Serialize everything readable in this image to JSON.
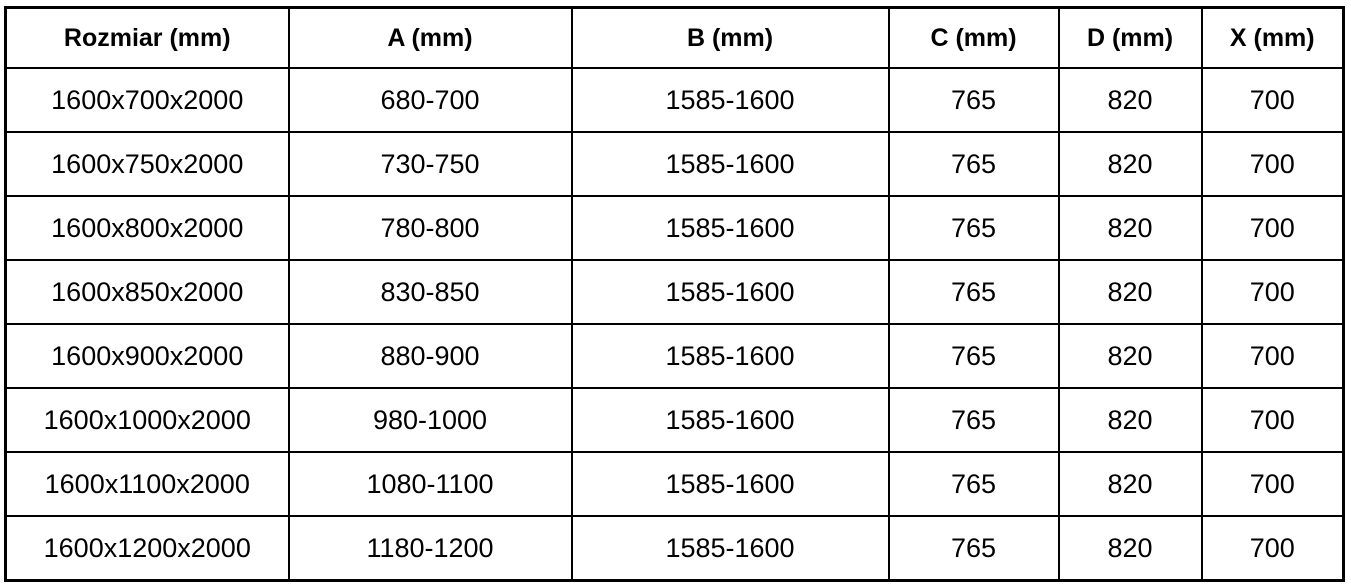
{
  "table": {
    "headers": [
      "Rozmiar (mm)",
      "A (mm)",
      "B (mm)",
      "C (mm)",
      "D (mm)",
      "X (mm)"
    ],
    "rows": [
      [
        "1600x700x2000",
        "680-700",
        "1585-1600",
        "765",
        "820",
        "700"
      ],
      [
        "1600x750x2000",
        "730-750",
        "1585-1600",
        "765",
        "820",
        "700"
      ],
      [
        "1600x800x2000",
        "780-800",
        "1585-1600",
        "765",
        "820",
        "700"
      ],
      [
        "1600x850x2000",
        "830-850",
        "1585-1600",
        "765",
        "820",
        "700"
      ],
      [
        "1600x900x2000",
        "880-900",
        "1585-1600",
        "765",
        "820",
        "700"
      ],
      [
        "1600x1000x2000",
        "980-1000",
        "1585-1600",
        "765",
        "820",
        "700"
      ],
      [
        "1600x1100x2000",
        "1080-1100",
        "1585-1600",
        "765",
        "820",
        "700"
      ],
      [
        "1600x1200x2000",
        "1180-1200",
        "1585-1600",
        "765",
        "820",
        "700"
      ]
    ]
  },
  "colors": {
    "border": "#000000",
    "background": "#ffffff",
    "text": "#000000"
  }
}
